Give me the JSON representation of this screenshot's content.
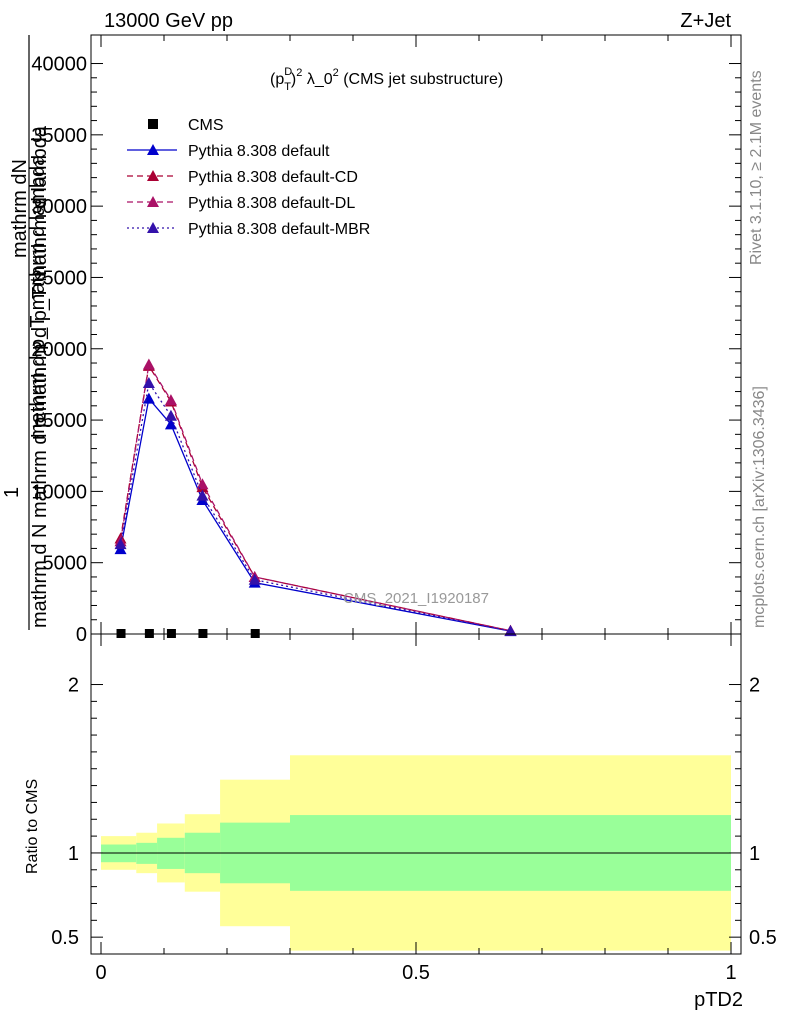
{
  "header": {
    "energy_label": "13000 GeV pp",
    "process_label": "Z+Jet"
  },
  "side_labels": {
    "rivet": "Rivet 3.1.10, ≥ 2.1M events",
    "mcplots": "mcplots.cern.ch [arXiv:1306.3436]"
  },
  "watermark": "CMS_2021_I1920187",
  "colors": {
    "cms": "#000000",
    "default": "#0000cc",
    "cd": "#aa0033",
    "dl": "#aa1166",
    "mbr": "#3311aa",
    "band_inner": "#99ff99",
    "band_outer": "#ffff99"
  },
  "chart_data": [
    {
      "type": "line",
      "title_parts": {
        "p": "(p",
        "sup1": "D",
        "sub1": "T",
        "close": ")",
        "sup2": "2",
        "mid": " λ_0",
        "sup3": "2",
        "tail": " (CMS jet substructure)"
      },
      "ylabel_parts": {
        "one": "1",
        "den": "mathrm d N",
        "den2": "mathrm d p",
        "den2_sub": "T",
        "den3": "mathrm d p",
        "den3_sub": "T",
        "den4": "mathrm d lambda",
        "num": "mathrm d",
        "num2": "N"
      },
      "ylabel_lines": [
        "mathrm dN",
        "mathrm d p_T mathrm d lambda",
        "1",
        "mathrm d N mathrm d p mathrm d p_T mathrm d lambda"
      ],
      "xlim": [
        0,
        1
      ],
      "ylim": [
        0,
        42000
      ],
      "y_ticks": [
        0,
        5000,
        10000,
        15000,
        20000,
        25000,
        30000,
        35000,
        40000
      ],
      "y_tick_labels": [
        "0",
        "5000",
        "10000",
        "15000",
        "20000",
        "25000",
        "30000",
        "35000",
        "40000"
      ],
      "grid": false,
      "legend_position": "top-left",
      "series": [
        {
          "name": "CMS",
          "style": "markers-square",
          "color": "#000000",
          "x": [
            0.031,
            0.076,
            0.111,
            0.161,
            0.244
          ],
          "y": [
            0,
            0,
            0,
            0,
            0
          ]
        },
        {
          "name": "Pythia 8.308 default",
          "style": "solid",
          "color": "#0000cc",
          "x": [
            0.031,
            0.076,
            0.111,
            0.161,
            0.244,
            0.65
          ],
          "y": [
            5950,
            16500,
            14700,
            9400,
            3600,
            200
          ]
        },
        {
          "name": "Pythia 8.308 default-CD",
          "style": "dashed",
          "color": "#aa0033",
          "x": [
            0.031,
            0.076,
            0.111,
            0.161,
            0.244,
            0.65
          ],
          "y": [
            6700,
            18800,
            16300,
            10300,
            4000,
            230
          ]
        },
        {
          "name": "Pythia 8.308 default-DL",
          "style": "dashed",
          "color": "#aa1166",
          "x": [
            0.031,
            0.076,
            0.111,
            0.161,
            0.244,
            0.65
          ],
          "y": [
            6500,
            18900,
            16400,
            10500,
            4000,
            230
          ]
        },
        {
          "name": "Pythia 8.308 default-MBR",
          "style": "dotted",
          "color": "#3311aa",
          "x": [
            0.031,
            0.076,
            0.111,
            0.161,
            0.244,
            0.65
          ],
          "y": [
            6300,
            17600,
            15300,
            9700,
            3800,
            210
          ]
        }
      ]
    },
    {
      "type": "area",
      "ylabel": "Ratio to CMS",
      "xlabel": "pTD2",
      "xlim": [
        0,
        1
      ],
      "ylim": [
        0.4,
        2.3
      ],
      "x_ticks": [
        0,
        0.5,
        1
      ],
      "x_tick_labels": [
        "0",
        "0.5",
        "1"
      ],
      "y_ticks": [
        0.5,
        1,
        2
      ],
      "y_tick_labels": [
        "0.5",
        "1",
        "2"
      ],
      "reference_line": 1,
      "bins": [
        {
          "lo": 0.0,
          "hi": 0.056,
          "inner": [
            0.945,
            1.05
          ],
          "outer": [
            0.9,
            1.1
          ]
        },
        {
          "lo": 0.056,
          "hi": 0.089,
          "inner": [
            0.935,
            1.06
          ],
          "outer": [
            0.88,
            1.12
          ]
        },
        {
          "lo": 0.089,
          "hi": 0.133,
          "inner": [
            0.905,
            1.09
          ],
          "outer": [
            0.825,
            1.175
          ]
        },
        {
          "lo": 0.133,
          "hi": 0.189,
          "inner": [
            0.88,
            1.12
          ],
          "outer": [
            0.77,
            1.23
          ]
        },
        {
          "lo": 0.189,
          "hi": 0.3,
          "inner": [
            0.82,
            1.18
          ],
          "outer": [
            0.565,
            1.435
          ]
        },
        {
          "lo": 0.3,
          "hi": 1.0,
          "inner": [
            0.775,
            1.225
          ],
          "outer": [
            0.42,
            1.58
          ]
        }
      ]
    }
  ]
}
